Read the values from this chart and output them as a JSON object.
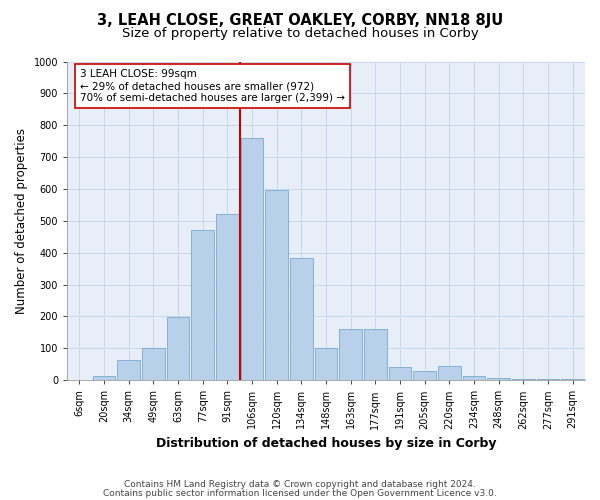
{
  "title": "3, LEAH CLOSE, GREAT OAKLEY, CORBY, NN18 8JU",
  "subtitle": "Size of property relative to detached houses in Corby",
  "xlabel": "Distribution of detached houses by size in Corby",
  "ylabel": "Number of detached properties",
  "footnote1": "Contains HM Land Registry data © Crown copyright and database right 2024.",
  "footnote2": "Contains public sector information licensed under the Open Government Licence v3.0.",
  "bar_labels": [
    "6sqm",
    "20sqm",
    "34sqm",
    "49sqm",
    "63sqm",
    "77sqm",
    "91sqm",
    "106sqm",
    "120sqm",
    "134sqm",
    "148sqm",
    "163sqm",
    "177sqm",
    "191sqm",
    "205sqm",
    "220sqm",
    "234sqm",
    "248sqm",
    "262sqm",
    "277sqm",
    "291sqm"
  ],
  "bar_values": [
    0,
    13,
    62,
    100,
    197,
    470,
    520,
    760,
    597,
    383,
    100,
    160,
    160,
    42,
    28,
    44,
    13,
    8,
    3,
    3,
    3
  ],
  "bar_color": "#b8d0ea",
  "bar_edge_color": "#7aaad0",
  "grid_color": "#c8d8ec",
  "background_color": "#e8eef8",
  "vline_color": "#cc0000",
  "annotation_text": "3 LEAH CLOSE: 99sqm\n← 29% of detached houses are smaller (972)\n70% of semi-detached houses are larger (2,399) →",
  "annotation_box_color": "white",
  "annotation_box_edge": "#cc0000",
  "ylim": [
    0,
    1000
  ],
  "yticks": [
    0,
    100,
    200,
    300,
    400,
    500,
    600,
    700,
    800,
    900,
    1000
  ],
  "title_fontsize": 10.5,
  "subtitle_fontsize": 9.5,
  "xlabel_fontsize": 9,
  "ylabel_fontsize": 8.5,
  "tick_fontsize": 7,
  "annotation_fontsize": 7.5,
  "footnote_fontsize": 6.5
}
